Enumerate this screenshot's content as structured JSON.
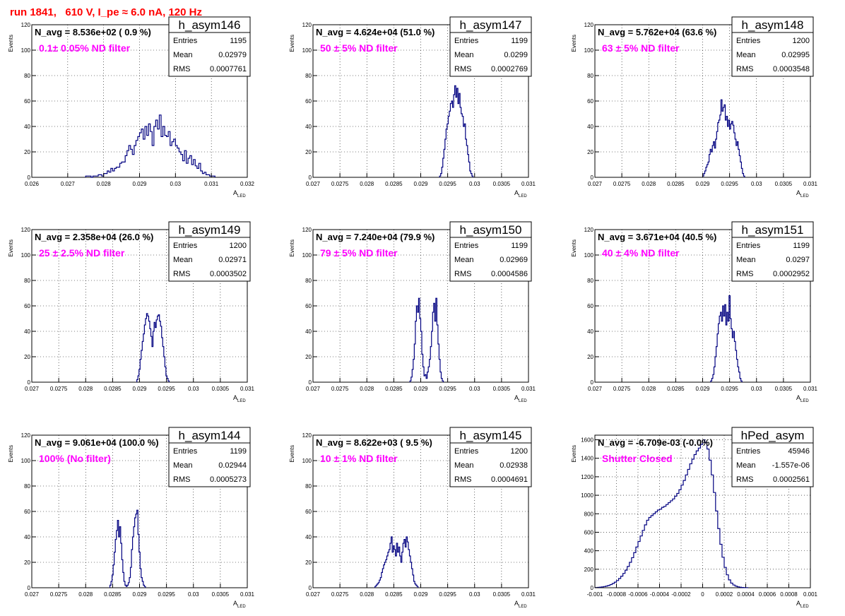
{
  "header": {
    "title": "run 1841,   610 V, I_pe ≈ 6.0 nA, 120 Hz"
  },
  "colors": {
    "hist": "#000080",
    "title": "#ff0000",
    "annotation": "#ff00ff",
    "grid": "#000000"
  },
  "axis": {
    "xlabel_main": "A",
    "xlabel_sub": "LED",
    "ylabel": "Events"
  },
  "chart_data": [
    {
      "type": "histogram",
      "name": "h_asym146",
      "title": "N_avg = 8.536e+02 ( 0.9 %)",
      "annotation": "0.1± 0.05% ND filter",
      "stats": [
        [
          "Entries",
          "1195"
        ],
        [
          "Mean",
          "0.02979"
        ],
        [
          "RMS",
          "0.0007761"
        ]
      ],
      "xlim": [
        0.026,
        0.032
      ],
      "ylim": [
        0,
        120
      ],
      "xticks": [
        0.026,
        0.027,
        0.028,
        0.029,
        0.03,
        0.031,
        0.032
      ],
      "xtick_labels": [
        "0.026",
        "0.027",
        "0.028",
        "0.029",
        "0.03",
        "0.031",
        "0.032"
      ],
      "yticks": [
        0,
        20,
        40,
        60,
        80,
        100,
        120
      ],
      "ytick_labels": [
        "0",
        "20",
        "40",
        "60",
        "80",
        "100",
        "120"
      ],
      "grid": true,
      "bins": {
        "start": 0.0275,
        "width": 5e-05,
        "counts": [
          1,
          1,
          1,
          0,
          1,
          1,
          1,
          2,
          2,
          1,
          3,
          3,
          5,
          4,
          7,
          5,
          7,
          8,
          8,
          11,
          12,
          12,
          17,
          21,
          25,
          22,
          18,
          25,
          29,
          32,
          35,
          38,
          30,
          40,
          33,
          42,
          36,
          25,
          40,
          45,
          38,
          49,
          32,
          40,
          33,
          32,
          36,
          25,
          28,
          30,
          25,
          23,
          20,
          18,
          13,
          21,
          11,
          15,
          17,
          10,
          14,
          9,
          7,
          11,
          5,
          3,
          4,
          2,
          2,
          1,
          1,
          1
        ]
      }
    },
    {
      "type": "histogram",
      "name": "h_asym147",
      "title": "N_avg = 4.624e+04 (51.0 %)",
      "annotation": "50 ± 5% ND filter",
      "stats": [
        [
          "Entries",
          "1199"
        ],
        [
          "Mean",
          "0.0299"
        ],
        [
          "RMS",
          "0.0002769"
        ]
      ],
      "xlim": [
        0.027,
        0.031
      ],
      "ylim": [
        0,
        120
      ],
      "xticks": [
        0.027,
        0.0275,
        0.028,
        0.0285,
        0.029,
        0.0295,
        0.03,
        0.0305,
        0.031
      ],
      "xtick_labels": [
        "0.027",
        "0.0275",
        "0.028",
        "0.0285",
        "0.029",
        "0.0295",
        "0.03",
        "0.0305",
        "0.031"
      ],
      "yticks": [
        0,
        20,
        40,
        60,
        80,
        100,
        120
      ],
      "ytick_labels": [
        "0",
        "20",
        "40",
        "60",
        "80",
        "100",
        "120"
      ],
      "grid": true,
      "bins": {
        "start": 0.02935,
        "width": 2e-05,
        "counts": [
          1,
          3,
          8,
          15,
          22,
          30,
          38,
          42,
          48,
          52,
          58,
          60,
          55,
          65,
          72,
          63,
          70,
          58,
          66,
          55,
          50,
          48,
          40,
          42,
          30,
          25,
          18,
          12,
          5,
          3,
          1
        ]
      }
    },
    {
      "type": "histogram",
      "name": "h_asym148",
      "title": "N_avg = 5.762e+04 (63.6 %)",
      "annotation": "63 ± 5% ND filter",
      "stats": [
        [
          "Entries",
          "1200"
        ],
        [
          "Mean",
          "0.02995"
        ],
        [
          "RMS",
          "0.0003548"
        ]
      ],
      "xlim": [
        0.027,
        0.031
      ],
      "ylim": [
        0,
        120
      ],
      "xticks": [
        0.027,
        0.0275,
        0.028,
        0.0285,
        0.029,
        0.0295,
        0.03,
        0.0305,
        0.031
      ],
      "xtick_labels": [
        "0.027",
        "0.0275",
        "0.028",
        "0.0285",
        "0.029",
        "0.0295",
        "0.03",
        "0.0305",
        "0.031"
      ],
      "yticks": [
        0,
        20,
        40,
        60,
        80,
        100,
        120
      ],
      "ytick_labels": [
        "0",
        "20",
        "40",
        "60",
        "80",
        "100",
        "120"
      ],
      "grid": true,
      "bins": {
        "start": 0.029,
        "width": 2e-05,
        "counts": [
          1,
          3,
          5,
          8,
          10,
          12,
          18,
          22,
          20,
          25,
          28,
          23,
          30,
          36,
          43,
          45,
          49,
          61,
          52,
          55,
          57,
          45,
          48,
          40,
          45,
          38,
          42,
          44,
          41,
          35,
          30,
          25,
          28,
          22,
          17,
          12,
          7,
          3,
          1
        ]
      }
    },
    {
      "type": "histogram",
      "name": "h_asym149",
      "title": "N_avg = 2.358e+04 (26.0 %)",
      "annotation": "25 ± 2.5% ND filter",
      "stats": [
        [
          "Entries",
          "1200"
        ],
        [
          "Mean",
          "0.02971"
        ],
        [
          "RMS",
          "0.0003502"
        ]
      ],
      "xlim": [
        0.027,
        0.031
      ],
      "ylim": [
        0,
        120
      ],
      "xticks": [
        0.027,
        0.0275,
        0.028,
        0.0285,
        0.029,
        0.0295,
        0.03,
        0.0305,
        0.031
      ],
      "xtick_labels": [
        "0.027",
        "0.0275",
        "0.028",
        "0.0285",
        "0.029",
        "0.0295",
        "0.03",
        "0.0305",
        "0.031"
      ],
      "yticks": [
        0,
        20,
        40,
        60,
        80,
        100,
        120
      ],
      "ytick_labels": [
        "0",
        "20",
        "40",
        "60",
        "80",
        "100",
        "120"
      ],
      "grid": true,
      "bins": {
        "start": 0.02895,
        "width": 2e-05,
        "counts": [
          2,
          5,
          10,
          18,
          25,
          32,
          38,
          45,
          50,
          54,
          52,
          48,
          42,
          36,
          28,
          40,
          47,
          43,
          49,
          52,
          53,
          48,
          44,
          35,
          28,
          20,
          12,
          5,
          3,
          1
        ]
      }
    },
    {
      "type": "histogram",
      "name": "h_asym150",
      "title": "N_avg = 7.240e+04 (79.9 %)",
      "annotation": "79 ± 5% ND filter",
      "stats": [
        [
          "Entries",
          "1199"
        ],
        [
          "Mean",
          "0.02969"
        ],
        [
          "RMS",
          "0.0004586"
        ]
      ],
      "xlim": [
        0.027,
        0.031
      ],
      "ylim": [
        0,
        120
      ],
      "xticks": [
        0.027,
        0.0275,
        0.028,
        0.0285,
        0.029,
        0.0295,
        0.03,
        0.0305,
        0.031
      ],
      "xtick_labels": [
        "0.027",
        "0.0275",
        "0.028",
        "0.0285",
        "0.029",
        "0.0295",
        "0.03",
        "0.0305",
        "0.031"
      ],
      "yticks": [
        0,
        20,
        40,
        60,
        80,
        100,
        120
      ],
      "ytick_labels": [
        "0",
        "20",
        "40",
        "60",
        "80",
        "100",
        "120"
      ],
      "grid": true,
      "bins": {
        "start": 0.0288,
        "width": 2e-05,
        "counts": [
          1,
          4,
          10,
          18,
          30,
          48,
          60,
          55,
          66,
          50,
          40,
          22,
          12,
          5,
          6,
          3,
          8,
          12,
          18,
          28,
          40,
          55,
          62,
          48,
          66,
          45,
          30,
          18,
          8,
          3,
          1
        ]
      }
    },
    {
      "type": "histogram",
      "name": "h_asym151",
      "title": "N_avg = 3.671e+04 (40.5 %)",
      "annotation": "40 ± 4% ND filter",
      "stats": [
        [
          "Entries",
          "1199"
        ],
        [
          "Mean",
          "0.0297"
        ],
        [
          "RMS",
          "0.0002952"
        ]
      ],
      "xlim": [
        0.027,
        0.031
      ],
      "ylim": [
        0,
        120
      ],
      "xticks": [
        0.027,
        0.0275,
        0.028,
        0.0285,
        0.029,
        0.0295,
        0.03,
        0.0305,
        0.031
      ],
      "xtick_labels": [
        "0.027",
        "0.0275",
        "0.028",
        "0.0285",
        "0.029",
        "0.0295",
        "0.03",
        "0.0305",
        "0.031"
      ],
      "yticks": [
        0,
        20,
        40,
        60,
        80,
        100,
        120
      ],
      "ytick_labels": [
        "0",
        "20",
        "40",
        "60",
        "80",
        "100",
        "120"
      ],
      "grid": true,
      "bins": {
        "start": 0.02915,
        "width": 2e-05,
        "counts": [
          1,
          3,
          6,
          12,
          20,
          28,
          38,
          46,
          52,
          55,
          48,
          60,
          52,
          61,
          45,
          55,
          48,
          68,
          50,
          42,
          35,
          40,
          32,
          25,
          18,
          12,
          8,
          3,
          1
        ]
      }
    },
    {
      "type": "histogram",
      "name": "h_asym144",
      "title": "N_avg = 9.061e+04 (100.0 %)",
      "annotation": "100% (No filter)",
      "stats": [
        [
          "Entries",
          "1199"
        ],
        [
          "Mean",
          "0.02944"
        ],
        [
          "RMS",
          "0.0005273"
        ]
      ],
      "xlim": [
        0.027,
        0.031
      ],
      "ylim": [
        0,
        120
      ],
      "xticks": [
        0.027,
        0.0275,
        0.028,
        0.0285,
        0.029,
        0.0295,
        0.03,
        0.0305,
        0.031
      ],
      "xtick_labels": [
        "0.027",
        "0.0275",
        "0.028",
        "0.0285",
        "0.029",
        "0.0295",
        "0.03",
        "0.0305",
        "0.031"
      ],
      "yticks": [
        0,
        20,
        40,
        60,
        80,
        100,
        120
      ],
      "ytick_labels": [
        "0",
        "20",
        "40",
        "60",
        "80",
        "100",
        "120"
      ],
      "grid": true,
      "bins": {
        "start": 0.02845,
        "width": 2e-05,
        "counts": [
          2,
          5,
          10,
          18,
          28,
          38,
          45,
          53,
          40,
          48,
          35,
          22,
          12,
          5,
          2,
          1,
          2,
          4,
          8,
          16,
          30,
          40,
          48,
          55,
          58,
          61,
          42,
          28,
          15,
          8,
          5,
          2,
          1
        ]
      }
    },
    {
      "type": "histogram",
      "name": "h_asym145",
      "title": "N_avg = 8.622e+03 ( 9.5 %)",
      "annotation": "10 ± 1% ND filter",
      "stats": [
        [
          "Entries",
          "1200"
        ],
        [
          "Mean",
          "0.02938"
        ],
        [
          "RMS",
          "0.0004691"
        ]
      ],
      "xlim": [
        0.027,
        0.031
      ],
      "ylim": [
        0,
        120
      ],
      "xticks": [
        0.027,
        0.0275,
        0.028,
        0.0285,
        0.029,
        0.0295,
        0.03,
        0.0305,
        0.031
      ],
      "xtick_labels": [
        "0.027",
        "0.0275",
        "0.028",
        "0.0285",
        "0.029",
        "0.0295",
        "0.03",
        "0.0305",
        "0.031"
      ],
      "yticks": [
        0,
        20,
        40,
        60,
        80,
        100,
        120
      ],
      "ytick_labels": [
        "0",
        "20",
        "40",
        "60",
        "80",
        "100",
        "120"
      ],
      "grid": true,
      "bins": {
        "start": 0.02815,
        "width": 2e-05,
        "counts": [
          1,
          2,
          3,
          4,
          6,
          8,
          12,
          15,
          18,
          20,
          22,
          25,
          28,
          30,
          35,
          40,
          28,
          33,
          30,
          25,
          35,
          28,
          32,
          25,
          20,
          28,
          35,
          38,
          32,
          40,
          36,
          30,
          25,
          20,
          15,
          10,
          5,
          3,
          2,
          1
        ]
      }
    },
    {
      "type": "histogram",
      "name": "hPed_asym",
      "title": "N_avg = -6.709e-03 (-0.0%)",
      "annotation": "Shutter Closed",
      "stats": [
        [
          "Entries",
          "45946"
        ],
        [
          "Mean",
          "-1.557e-06"
        ],
        [
          "RMS",
          "0.0002561"
        ]
      ],
      "xlim": [
        -0.001,
        0.001
      ],
      "ylim": [
        0,
        1650
      ],
      "xticks": [
        -0.001,
        -0.0008,
        -0.0006,
        -0.0004,
        -0.0002,
        0,
        0.0002,
        0.0004,
        0.0006,
        0.0008,
        0.001
      ],
      "xtick_labels": [
        "-0.001",
        "-0.0008",
        "-0.0006",
        "-0.0004",
        "-0.0002",
        "0",
        "0.0002",
        "0.0004",
        "0.0006",
        "0.0008",
        "0.001"
      ],
      "yticks": [
        0,
        200,
        400,
        600,
        800,
        1000,
        1200,
        1400,
        1600
      ],
      "ytick_labels": [
        "0",
        "200",
        "400",
        "600",
        "800",
        "1000",
        "1200",
        "1400",
        "1600"
      ],
      "grid": true,
      "bins": {
        "start": -0.001,
        "width": 2e-05,
        "counts": [
          2,
          4,
          6,
          9,
          13,
          18,
          25,
          34,
          46,
          60,
          78,
          100,
          125,
          155,
          190,
          230,
          275,
          325,
          380,
          440,
          500,
          560,
          620,
          680,
          730,
          760,
          780,
          800,
          820,
          840,
          850,
          870,
          880,
          900,
          920,
          940,
          960,
          990,
          1020,
          1060,
          1110,
          1160,
          1220,
          1280,
          1340,
          1390,
          1440,
          1480,
          1510,
          1550,
          1600,
          1570,
          1500,
          1380,
          1220,
          1030,
          830,
          640,
          470,
          330,
          220,
          140,
          85,
          50,
          30,
          18,
          10,
          6,
          3,
          2,
          1
        ]
      }
    }
  ]
}
